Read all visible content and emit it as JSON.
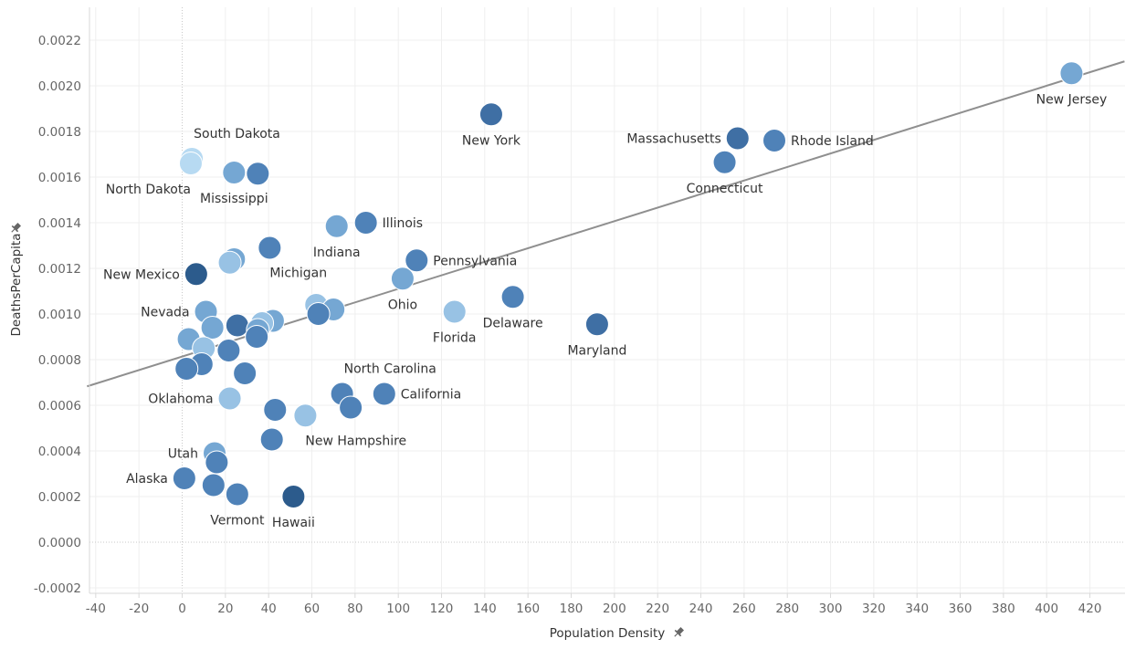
{
  "chart_data": {
    "type": "scatter",
    "xlabel": "Population Density",
    "ylabel": "DeathsPerCapita",
    "xlim": [
      -44,
      436
    ],
    "ylim": [
      -0.00024,
      0.00233
    ],
    "x_ticks": [
      -40,
      -20,
      0,
      20,
      40,
      60,
      80,
      100,
      120,
      140,
      160,
      180,
      200,
      220,
      240,
      260,
      280,
      300,
      320,
      340,
      360,
      380,
      400,
      420
    ],
    "y_ticks": [
      -0.0002,
      0.0,
      0.0002,
      0.0004,
      0.0006,
      0.0008,
      0.001,
      0.0012,
      0.0014,
      0.0016,
      0.0018,
      0.002,
      0.0022
    ],
    "y_tick_labels": [
      "-0.0002",
      "0.0000",
      "0.0002",
      "0.0004",
      "0.0006",
      "0.0008",
      "0.0010",
      "0.0012",
      "0.0014",
      "0.0016",
      "0.0018",
      "0.0020",
      "0.0022"
    ],
    "grid": true,
    "trend_line": {
      "type": "linear",
      "x": [
        -44,
        436
      ],
      "y": [
        0.000683,
        0.002107
      ]
    },
    "colors": {
      "darkest": "#2c5b8c",
      "dark": "#3f6fa4",
      "medium": "#4f82b8",
      "light": "#75a7d3",
      "lighter": "#98c2e4",
      "lightest": "#b7daf2"
    },
    "points": [
      {
        "label": "New Jersey",
        "x": 411.5,
        "y": 0.002055,
        "shade": "light",
        "label_pos": "below"
      },
      {
        "label": "New York",
        "x": 143,
        "y": 0.001875,
        "shade": "dark",
        "label_pos": "below"
      },
      {
        "label": "Massachusetts",
        "x": 257,
        "y": 0.00177,
        "shade": "dark",
        "label_pos": "left"
      },
      {
        "label": "Rhode Island",
        "x": 274,
        "y": 0.00176,
        "shade": "medium",
        "label_pos": "right"
      },
      {
        "label": "Connecticut",
        "x": 251,
        "y": 0.001665,
        "shade": "medium",
        "label_pos": "below"
      },
      {
        "label": "South Dakota",
        "x": 4.5,
        "y": 0.00168,
        "shade": "lightest",
        "label_pos": "above-right"
      },
      {
        "label": "North Dakota",
        "x": 4,
        "y": 0.00166,
        "shade": "lightest",
        "label_pos": "below-left"
      },
      {
        "label": "Mississippi",
        "x": 24,
        "y": 0.00162,
        "shade": "light",
        "label_pos": "below"
      },
      {
        "label": "",
        "x": 35,
        "y": 0.001615,
        "shade": "medium",
        "label_pos": "none"
      },
      {
        "label": "Illinois",
        "x": 85,
        "y": 0.0014,
        "shade": "medium",
        "label_pos": "right"
      },
      {
        "label": "Indiana",
        "x": 71.5,
        "y": 0.001385,
        "shade": "light",
        "label_pos": "below"
      },
      {
        "label": "Michigan",
        "x": 40.5,
        "y": 0.00129,
        "shade": "medium",
        "label_pos": "below-right"
      },
      {
        "label": "",
        "x": 24,
        "y": 0.00124,
        "shade": "light",
        "label_pos": "none"
      },
      {
        "label": "",
        "x": 22,
        "y": 0.001225,
        "shade": "lighter",
        "label_pos": "none"
      },
      {
        "label": "Pennsylvania",
        "x": 108.5,
        "y": 0.001235,
        "shade": "medium",
        "label_pos": "right"
      },
      {
        "label": "New Mexico",
        "x": 6.5,
        "y": 0.001175,
        "shade": "darkest",
        "label_pos": "left"
      },
      {
        "label": "Ohio",
        "x": 102,
        "y": 0.001155,
        "shade": "light",
        "label_pos": "below"
      },
      {
        "label": "Delaware",
        "x": 153,
        "y": 0.001075,
        "shade": "medium",
        "label_pos": "below"
      },
      {
        "label": "",
        "x": 62,
        "y": 0.00104,
        "shade": "lighter",
        "label_pos": "none"
      },
      {
        "label": "",
        "x": 70,
        "y": 0.00102,
        "shade": "light",
        "label_pos": "none"
      },
      {
        "label": "",
        "x": 63,
        "y": 0.001,
        "shade": "medium",
        "label_pos": "none"
      },
      {
        "label": "Florida",
        "x": 126,
        "y": 0.00101,
        "shade": "lighter",
        "label_pos": "below"
      },
      {
        "label": "Nevada",
        "x": 11,
        "y": 0.00101,
        "shade": "light",
        "label_pos": "left"
      },
      {
        "label": "Maryland",
        "x": 192,
        "y": 0.000955,
        "shade": "dark",
        "label_pos": "below"
      },
      {
        "label": "",
        "x": 42,
        "y": 0.00097,
        "shade": "light",
        "label_pos": "none"
      },
      {
        "label": "",
        "x": 25.5,
        "y": 0.00095,
        "shade": "dark",
        "label_pos": "none"
      },
      {
        "label": "",
        "x": 14,
        "y": 0.00094,
        "shade": "light",
        "label_pos": "none"
      },
      {
        "label": "",
        "x": 37,
        "y": 0.00096,
        "shade": "lighter",
        "label_pos": "none"
      },
      {
        "label": "",
        "x": 35,
        "y": 0.00093,
        "shade": "light",
        "label_pos": "none"
      },
      {
        "label": "",
        "x": 34.5,
        "y": 0.0009,
        "shade": "medium",
        "label_pos": "none"
      },
      {
        "label": "",
        "x": 3,
        "y": 0.00089,
        "shade": "light",
        "label_pos": "none"
      },
      {
        "label": "",
        "x": 10,
        "y": 0.00085,
        "shade": "lighter",
        "label_pos": "none"
      },
      {
        "label": "",
        "x": 21.5,
        "y": 0.00084,
        "shade": "medium",
        "label_pos": "none"
      },
      {
        "label": "",
        "x": 9,
        "y": 0.00078,
        "shade": "medium",
        "label_pos": "none"
      },
      {
        "label": "",
        "x": 2,
        "y": 0.00076,
        "shade": "medium",
        "label_pos": "none"
      },
      {
        "label": "",
        "x": 29,
        "y": 0.00074,
        "shade": "medium",
        "label_pos": "none"
      },
      {
        "label": "Oklahoma",
        "x": 22,
        "y": 0.00063,
        "shade": "lighter",
        "label_pos": "left"
      },
      {
        "label": "North Carolina",
        "x": 74,
        "y": 0.00065,
        "shade": "medium",
        "label_pos": "above-right"
      },
      {
        "label": "California",
        "x": 93.5,
        "y": 0.00065,
        "shade": "medium",
        "label_pos": "right"
      },
      {
        "label": "",
        "x": 78,
        "y": 0.00059,
        "shade": "medium",
        "label_pos": "none"
      },
      {
        "label": "",
        "x": 43,
        "y": 0.00058,
        "shade": "medium",
        "label_pos": "none"
      },
      {
        "label": "New Hampshire",
        "x": 57,
        "y": 0.000555,
        "shade": "lighter",
        "label_pos": "below-right"
      },
      {
        "label": "",
        "x": 41.5,
        "y": 0.00045,
        "shade": "medium",
        "label_pos": "none"
      },
      {
        "label": "Utah",
        "x": 15,
        "y": 0.00039,
        "shade": "light",
        "label_pos": "left"
      },
      {
        "label": "",
        "x": 16,
        "y": 0.00035,
        "shade": "medium",
        "label_pos": "none"
      },
      {
        "label": "Alaska",
        "x": 1,
        "y": 0.00028,
        "shade": "medium",
        "label_pos": "left"
      },
      {
        "label": "",
        "x": 14.5,
        "y": 0.00025,
        "shade": "medium",
        "label_pos": "none"
      },
      {
        "label": "Vermont",
        "x": 25.5,
        "y": 0.00021,
        "shade": "medium",
        "label_pos": "below"
      },
      {
        "label": "Hawaii",
        "x": 51.5,
        "y": 0.0002,
        "shade": "darkest",
        "label_pos": "below"
      }
    ]
  }
}
